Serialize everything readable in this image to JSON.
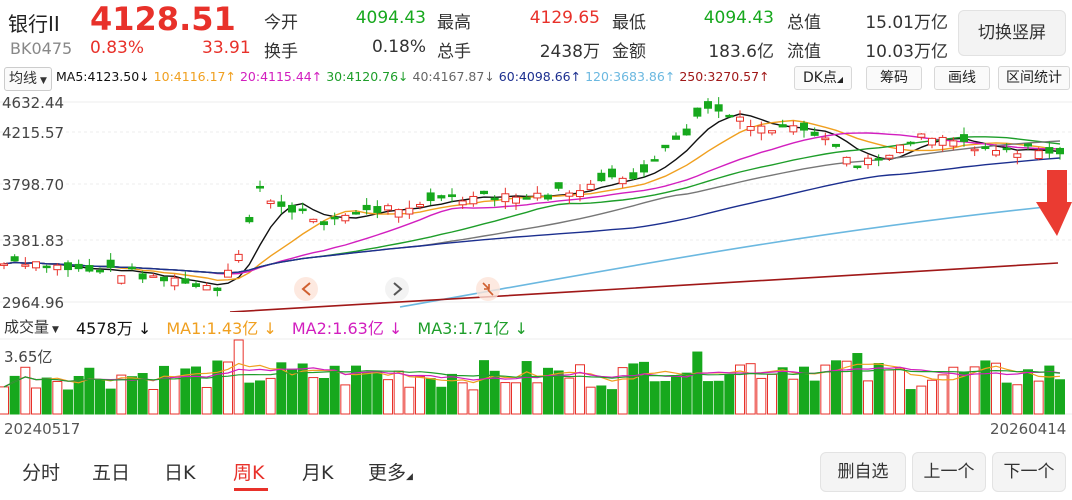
{
  "header": {
    "name": "银行II",
    "price": "4128.51",
    "code": "BK0475",
    "change_pct": "0.83%",
    "change_abs": "33.91",
    "stats": [
      {
        "label": "今开",
        "value": "4094.43",
        "color": "#17a81d"
      },
      {
        "label": "最高",
        "value": "4129.65",
        "color": "#e8312a"
      },
      {
        "label": "最低",
        "value": "4094.43",
        "color": "#17a81d"
      },
      {
        "label": "总值",
        "value": "15.01万亿",
        "color": "#333333"
      },
      {
        "label": "换手",
        "value": "0.18%",
        "color": "#333333"
      },
      {
        "label": "总手",
        "value": "2438万",
        "color": "#333333"
      },
      {
        "label": "金额",
        "value": "183.6亿",
        "color": "#333333"
      },
      {
        "label": "流值",
        "value": "10.03万亿",
        "color": "#333333"
      }
    ],
    "switch_label": "切换竖屏"
  },
  "ma_bar": {
    "selector": "均线",
    "items": [
      {
        "text": "MA5:4123.50",
        "arrow": "↓",
        "color": "#111111"
      },
      {
        "text": "10:4116.17",
        "arrow": "↑",
        "color": "#f0a020"
      },
      {
        "text": "20:4115.44",
        "arrow": "↑",
        "color": "#d21fbf"
      },
      {
        "text": "30:4120.76",
        "arrow": "↓",
        "color": "#1e9e2a"
      },
      {
        "text": "40:4167.87",
        "arrow": "↓",
        "color": "#666666"
      },
      {
        "text": "60:4098.66",
        "arrow": "↑",
        "color": "#1c2f8f"
      },
      {
        "text": "120:3683.86",
        "arrow": "↑",
        "color": "#6bb8e0"
      },
      {
        "text": "250:3270.57",
        "arrow": "↑",
        "color": "#a01818"
      }
    ],
    "buttons": [
      "DK点",
      "筹码",
      "画线",
      "区间统计"
    ]
  },
  "price_axis": [
    "4632.44",
    "4215.57",
    "3798.70",
    "3381.83",
    "2964.96"
  ],
  "volume_bar": {
    "selector": "成交量",
    "items": [
      {
        "text": "4578万",
        "arrow": "↓",
        "color": "#111111"
      },
      {
        "text": "MA1:1.43亿",
        "arrow": "↓",
        "color": "#f0a020"
      },
      {
        "text": "MA2:1.63亿",
        "arrow": "↓",
        "color": "#d21fbf"
      },
      {
        "text": "MA3:1.71亿",
        "arrow": "↓",
        "color": "#1e9e2a"
      }
    ],
    "max_label": "3.65亿"
  },
  "dates": {
    "start": "20240517",
    "end": "20260414"
  },
  "tabs": [
    "分时",
    "五日",
    "日K",
    "周K",
    "月K",
    "更多"
  ],
  "active_tab": "周K",
  "actions": [
    "删自选",
    "上一个",
    "下一个"
  ],
  "colors": {
    "up": "#e8312a",
    "down": "#17a81d",
    "accent": "#e8312a"
  }
}
